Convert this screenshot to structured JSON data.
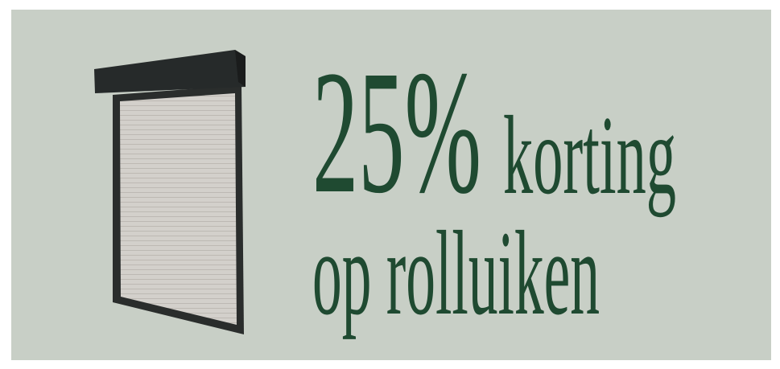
{
  "banner": {
    "discount": "25%",
    "discount_word": "korting",
    "subline": "op rolluiken"
  }
}
